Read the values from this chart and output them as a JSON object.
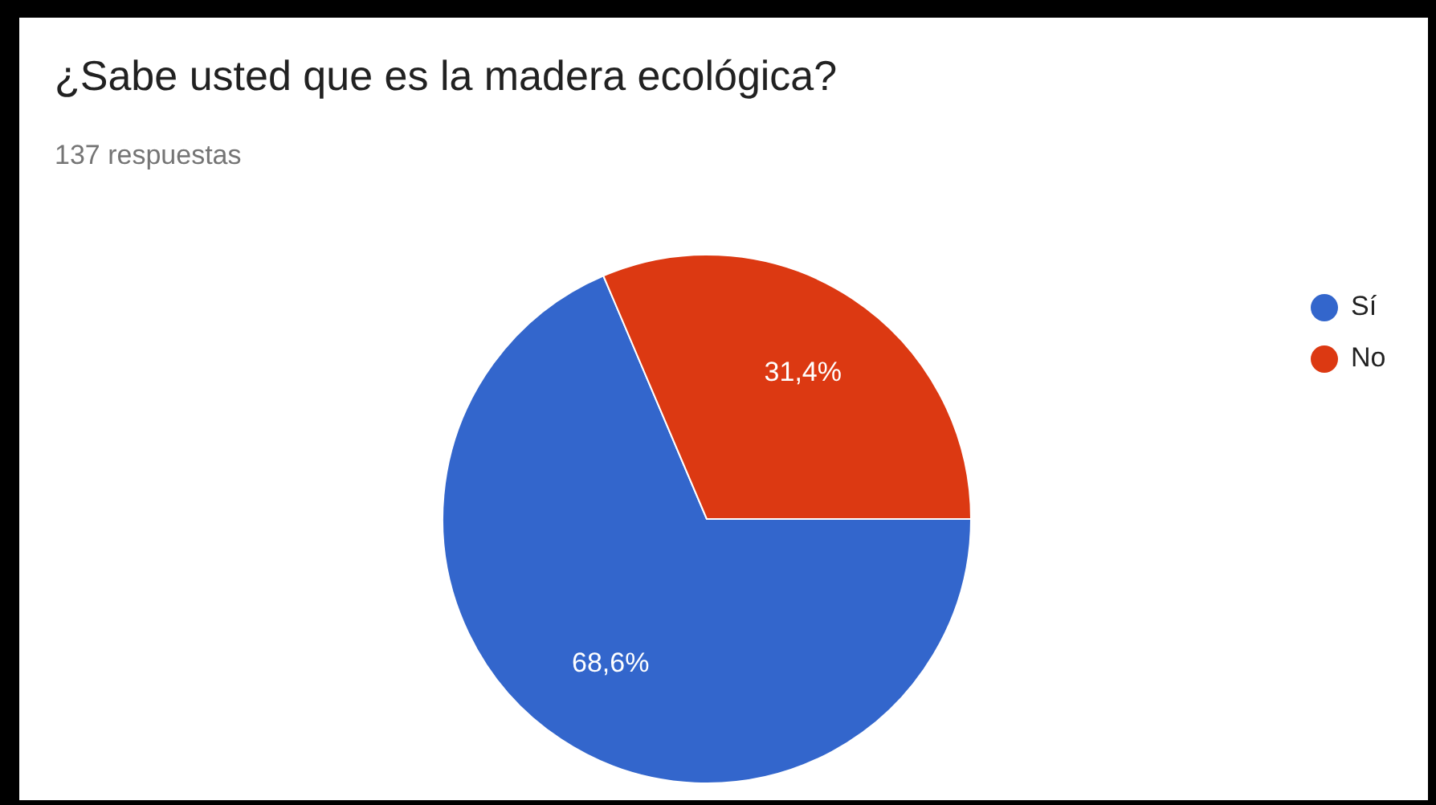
{
  "chart_data": {
    "type": "pie",
    "title": "¿Sabe usted que es la madera ecológica?",
    "subtitle": "137 respuestas",
    "categories": [
      "Sí",
      "No"
    ],
    "values": [
      68.6,
      31.4
    ],
    "colors": [
      "#3366cc",
      "#dc3912"
    ],
    "value_labels": [
      "68,6%",
      "31,4%"
    ],
    "legend": "top right"
  }
}
